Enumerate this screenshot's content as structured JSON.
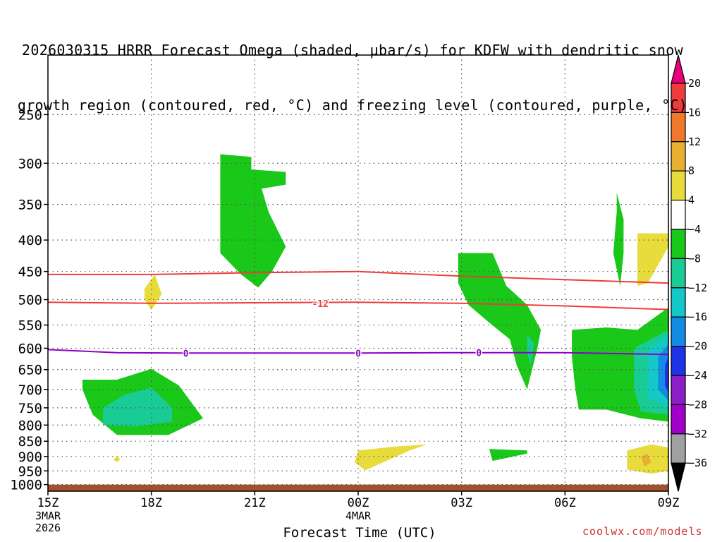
{
  "title": {
    "line1": "2026030315 HRRR Forecast Omega (shaded, μbar/s) for KDFW with dendritic snow",
    "line2": "growth region (contoured, red, °C) and freezing level (contoured, purple, °C)"
  },
  "credit": "coolwx.com/models",
  "chart_data": {
    "type": "heatmap",
    "xlabel": "Forecast Time (UTC)",
    "ylabel": "",
    "x_ticks": [
      {
        "x": 0,
        "label": "15Z",
        "sub": [
          "3MAR",
          "2026"
        ]
      },
      {
        "x": 3,
        "label": "18Z",
        "sub": []
      },
      {
        "x": 6,
        "label": "21Z",
        "sub": []
      },
      {
        "x": 9,
        "label": "00Z",
        "sub": [
          "4MAR"
        ]
      },
      {
        "x": 12,
        "label": "03Z",
        "sub": []
      },
      {
        "x": 15,
        "label": "06Z",
        "sub": []
      },
      {
        "x": 18,
        "label": "09Z",
        "sub": []
      }
    ],
    "xlim": [
      0,
      18
    ],
    "y_ticks": [
      250,
      300,
      350,
      400,
      450,
      500,
      550,
      600,
      650,
      700,
      750,
      800,
      850,
      900,
      950,
      1000
    ],
    "ylim": [
      1025,
      200
    ],
    "y_scale": "log",
    "colorbar": {
      "labels": [
        "20",
        "16",
        "12",
        "8",
        "4",
        "−4",
        "−8",
        "−12",
        "−16",
        "−20",
        "−24",
        "−28",
        "−32",
        "−36"
      ],
      "colors": [
        "#e8007a",
        "#ee3c3c",
        "#f07828",
        "#e8b030",
        "#e8dc3c",
        "#ffffff",
        "#19c819",
        "#19cc96",
        "#14c8c8",
        "#148ce6",
        "#1e32e6",
        "#8c1ec8",
        "#a000c8",
        "#a0a0a0",
        "#000000"
      ]
    },
    "contours": [
      {
        "name": "-12",
        "color": "#ee3c3c",
        "points": [
          [
            0,
            505
          ],
          [
            3,
            507
          ],
          [
            6,
            506
          ],
          [
            9,
            505
          ],
          [
            12,
            507
          ],
          [
            15,
            512
          ],
          [
            18,
            519
          ]
        ]
      },
      {
        "name": "",
        "color": "#ee3c3c",
        "points": [
          [
            0,
            455
          ],
          [
            3,
            455
          ],
          [
            6,
            452
          ],
          [
            9,
            450
          ],
          [
            12,
            458
          ],
          [
            15,
            464
          ],
          [
            18,
            470
          ]
        ]
      },
      {
        "name": "0",
        "color": "#8c00c8",
        "points": [
          [
            0,
            603
          ],
          [
            2,
            610
          ],
          [
            4,
            611
          ],
          [
            6,
            611
          ],
          [
            9,
            611
          ],
          [
            12,
            610
          ],
          [
            15,
            610
          ],
          [
            18,
            614
          ]
        ]
      }
    ],
    "contour_labels": [
      {
        "x": 4,
        "p": 611,
        "text": "0",
        "color": "#8c00c8"
      },
      {
        "x": 9,
        "p": 611,
        "text": "0",
        "color": "#8c00c8"
      },
      {
        "x": 12.5,
        "p": 610,
        "text": "0",
        "color": "#8c00c8"
      },
      {
        "x": 7.9,
        "p": 507,
        "text": "-12",
        "color": "#ee3c3c"
      }
    ],
    "shaded_regions": [
      {
        "level": "-4",
        "color": "#19c819",
        "points": [
          [
            5,
            290
          ],
          [
            5.9,
            293
          ],
          [
            5.9,
            307
          ],
          [
            6.9,
            310
          ],
          [
            6.9,
            325
          ],
          [
            6.2,
            330
          ],
          [
            6.4,
            360
          ],
          [
            6.9,
            410
          ],
          [
            6.5,
            450
          ],
          [
            6.1,
            478
          ],
          [
            5.6,
            455
          ],
          [
            5,
            420
          ],
          [
            5,
            360
          ]
        ]
      },
      {
        "level": "-4",
        "color": "#19c819",
        "points": [
          [
            1,
            675
          ],
          [
            2,
            675
          ],
          [
            3,
            648
          ],
          [
            3.8,
            690
          ],
          [
            4.5,
            780
          ],
          [
            3.5,
            830
          ],
          [
            2,
            830
          ],
          [
            1.3,
            770
          ],
          [
            1,
            700
          ]
        ]
      },
      {
        "level": "-8",
        "color": "#19cc96",
        "points": [
          [
            1.6,
            750
          ],
          [
            2.2,
            715
          ],
          [
            3,
            695
          ],
          [
            3.6,
            750
          ],
          [
            3.6,
            790
          ],
          [
            2.5,
            805
          ],
          [
            1.6,
            800
          ]
        ]
      },
      {
        "level": "-4",
        "color": "#19c819",
        "points": [
          [
            11.9,
            420
          ],
          [
            12.9,
            420
          ],
          [
            13.3,
            475
          ],
          [
            13.9,
            510
          ],
          [
            14.3,
            560
          ],
          [
            14.2,
            600
          ],
          [
            13.9,
            700
          ],
          [
            13.6,
            640
          ],
          [
            13.4,
            580
          ],
          [
            12.8,
            545
          ],
          [
            12.2,
            510
          ],
          [
            11.9,
            470
          ]
        ]
      },
      {
        "level": "-8",
        "color": "#19cc96",
        "points": [
          [
            13.9,
            570
          ],
          [
            14.1,
            590
          ],
          [
            14.0,
            640
          ],
          [
            13.9,
            610
          ]
        ]
      },
      {
        "level": "-4",
        "color": "#19c819",
        "points": [
          [
            16.5,
            335
          ],
          [
            16.7,
            370
          ],
          [
            16.7,
            420
          ],
          [
            16.6,
            475
          ],
          [
            16.4,
            420
          ],
          [
            16.5,
            360
          ]
        ]
      },
      {
        "level": "-4",
        "color": "#19c819",
        "points": [
          [
            15.2,
            560
          ],
          [
            16.2,
            555
          ],
          [
            17.1,
            560
          ],
          [
            18,
            515
          ],
          [
            18,
            790
          ],
          [
            17.2,
            780
          ],
          [
            16.2,
            755
          ],
          [
            15.4,
            755
          ],
          [
            15.3,
            700
          ],
          [
            15.2,
            620
          ]
        ]
      },
      {
        "level": "-8",
        "color": "#19cc96",
        "points": [
          [
            17,
            600
          ],
          [
            18,
            560
          ],
          [
            18,
            770
          ],
          [
            17.2,
            760
          ],
          [
            17.0,
            700
          ]
        ]
      },
      {
        "level": "-12",
        "color": "#14c8c8",
        "points": [
          [
            17.4,
            605
          ],
          [
            18,
            570
          ],
          [
            18,
            750
          ],
          [
            17.4,
            720
          ]
        ]
      },
      {
        "level": "-16",
        "color": "#148ce6",
        "points": [
          [
            17.7,
            620
          ],
          [
            18,
            590
          ],
          [
            18,
            730
          ],
          [
            17.7,
            700
          ]
        ]
      },
      {
        "level": "-20",
        "color": "#1e32e6",
        "points": [
          [
            17.9,
            640
          ],
          [
            18,
            620
          ],
          [
            18,
            710
          ],
          [
            17.9,
            690
          ]
        ]
      },
      {
        "level": "4",
        "color": "#e8dc3c",
        "points": [
          [
            17.1,
            390
          ],
          [
            18,
            390
          ],
          [
            18,
            410
          ],
          [
            17.4,
            470
          ],
          [
            17.1,
            475
          ],
          [
            17.1,
            430
          ]
        ]
      },
      {
        "level": "4",
        "color": "#e8dc3c",
        "points": [
          [
            2.8,
            480
          ],
          [
            3.1,
            455
          ],
          [
            3.3,
            490
          ],
          [
            3.0,
            520
          ],
          [
            2.8,
            500
          ]
        ]
      },
      {
        "level": "4",
        "color": "#e8dc3c",
        "points": [
          [
            9,
            880
          ],
          [
            10,
            868
          ],
          [
            11,
            860
          ],
          [
            10.5,
            880
          ],
          [
            9.2,
            948
          ],
          [
            8.9,
            920
          ]
        ]
      },
      {
        "level": "4",
        "color": "#e8dc3c",
        "points": [
          [
            16.8,
            880
          ],
          [
            17.5,
            860
          ],
          [
            18,
            870
          ],
          [
            18,
            950
          ],
          [
            17.5,
            960
          ],
          [
            16.8,
            945
          ]
        ]
      },
      {
        "level": "8",
        "color": "#e8b030",
        "points": [
          [
            17.2,
            900
          ],
          [
            17.4,
            890
          ],
          [
            17.5,
            920
          ],
          [
            17.3,
            935
          ]
        ]
      },
      {
        "level": "4",
        "color": "#e8dc3c",
        "points": [
          [
            2,
            900
          ],
          [
            2.1,
            910
          ],
          [
            2,
            920
          ],
          [
            1.9,
            910
          ]
        ]
      },
      {
        "level": "-4",
        "color": "#19c819",
        "points": [
          [
            12.8,
            875
          ],
          [
            13.9,
            880
          ],
          [
            13.9,
            890
          ],
          [
            12.9,
            915
          ]
        ]
      }
    ],
    "ground": {
      "from": 1000,
      "to": 1025,
      "color": "#a0522d"
    }
  }
}
